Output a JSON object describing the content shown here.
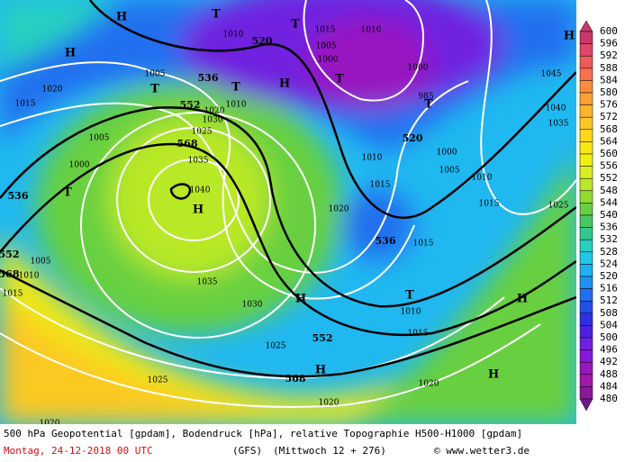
{
  "map": {
    "labels": [
      "H",
      "T",
      "1010",
      "520",
      "T",
      "1015",
      "1010",
      "1005",
      "1000",
      "H",
      "T",
      "1000",
      "985",
      "T",
      "520",
      "1000",
      "1005",
      "1010",
      "1015",
      "1020",
      "536",
      "1015",
      "1010",
      "1015",
      "1025",
      "1045",
      "1040",
      "1035",
      "H",
      "H",
      "1020",
      "1015",
      "1005",
      "1000",
      "536",
      "T",
      "552",
      "568",
      "1010",
      "1005",
      "1015",
      "1005",
      "T",
      "536",
      "T",
      "552",
      "1020",
      "1010",
      "1025",
      "568",
      "1035",
      "1040",
      "H",
      "1030",
      "1035",
      "1030",
      "1025",
      "552",
      "568",
      "H",
      "1020",
      "1025",
      "1020",
      "T",
      "1010",
      "H",
      "1015",
      "H",
      "H",
      "1020"
    ]
  },
  "colorbar": {
    "labels": [
      600,
      596,
      592,
      588,
      584,
      580,
      576,
      572,
      568,
      564,
      560,
      556,
      552,
      548,
      544,
      540,
      536,
      532,
      528,
      524,
      520,
      516,
      512,
      508,
      504,
      500,
      496,
      492,
      488,
      484,
      480
    ],
    "colors": [
      "#c8386c",
      "#e0456a",
      "#f05a5a",
      "#f87050",
      "#fc8c3c",
      "#fca030",
      "#fcb428",
      "#fcc820",
      "#fcd818",
      "#f8e810",
      "#f0f010",
      "#d8f020",
      "#b8e828",
      "#90dc30",
      "#68d040",
      "#48c860",
      "#30c890",
      "#28d0c0",
      "#20c8e8",
      "#20b0f0",
      "#2090f0",
      "#2070f0",
      "#2050e8",
      "#3030e0",
      "#5020e0",
      "#7020e0",
      "#8818d8",
      "#9818c0",
      "#a018a8",
      "#8c1898",
      "#701888"
    ]
  },
  "caption": {
    "line1": "500 hPa Geopotential [gpdam], Bodendruck [hPa], relative Topographie H500-H1000 [gpdam]",
    "date": "Montag, 24-12-2018  00 UTC",
    "model": "(GFS)",
    "run": "(Mittwoch 12 + 276)",
    "credit": "© www.wetter3.de"
  }
}
